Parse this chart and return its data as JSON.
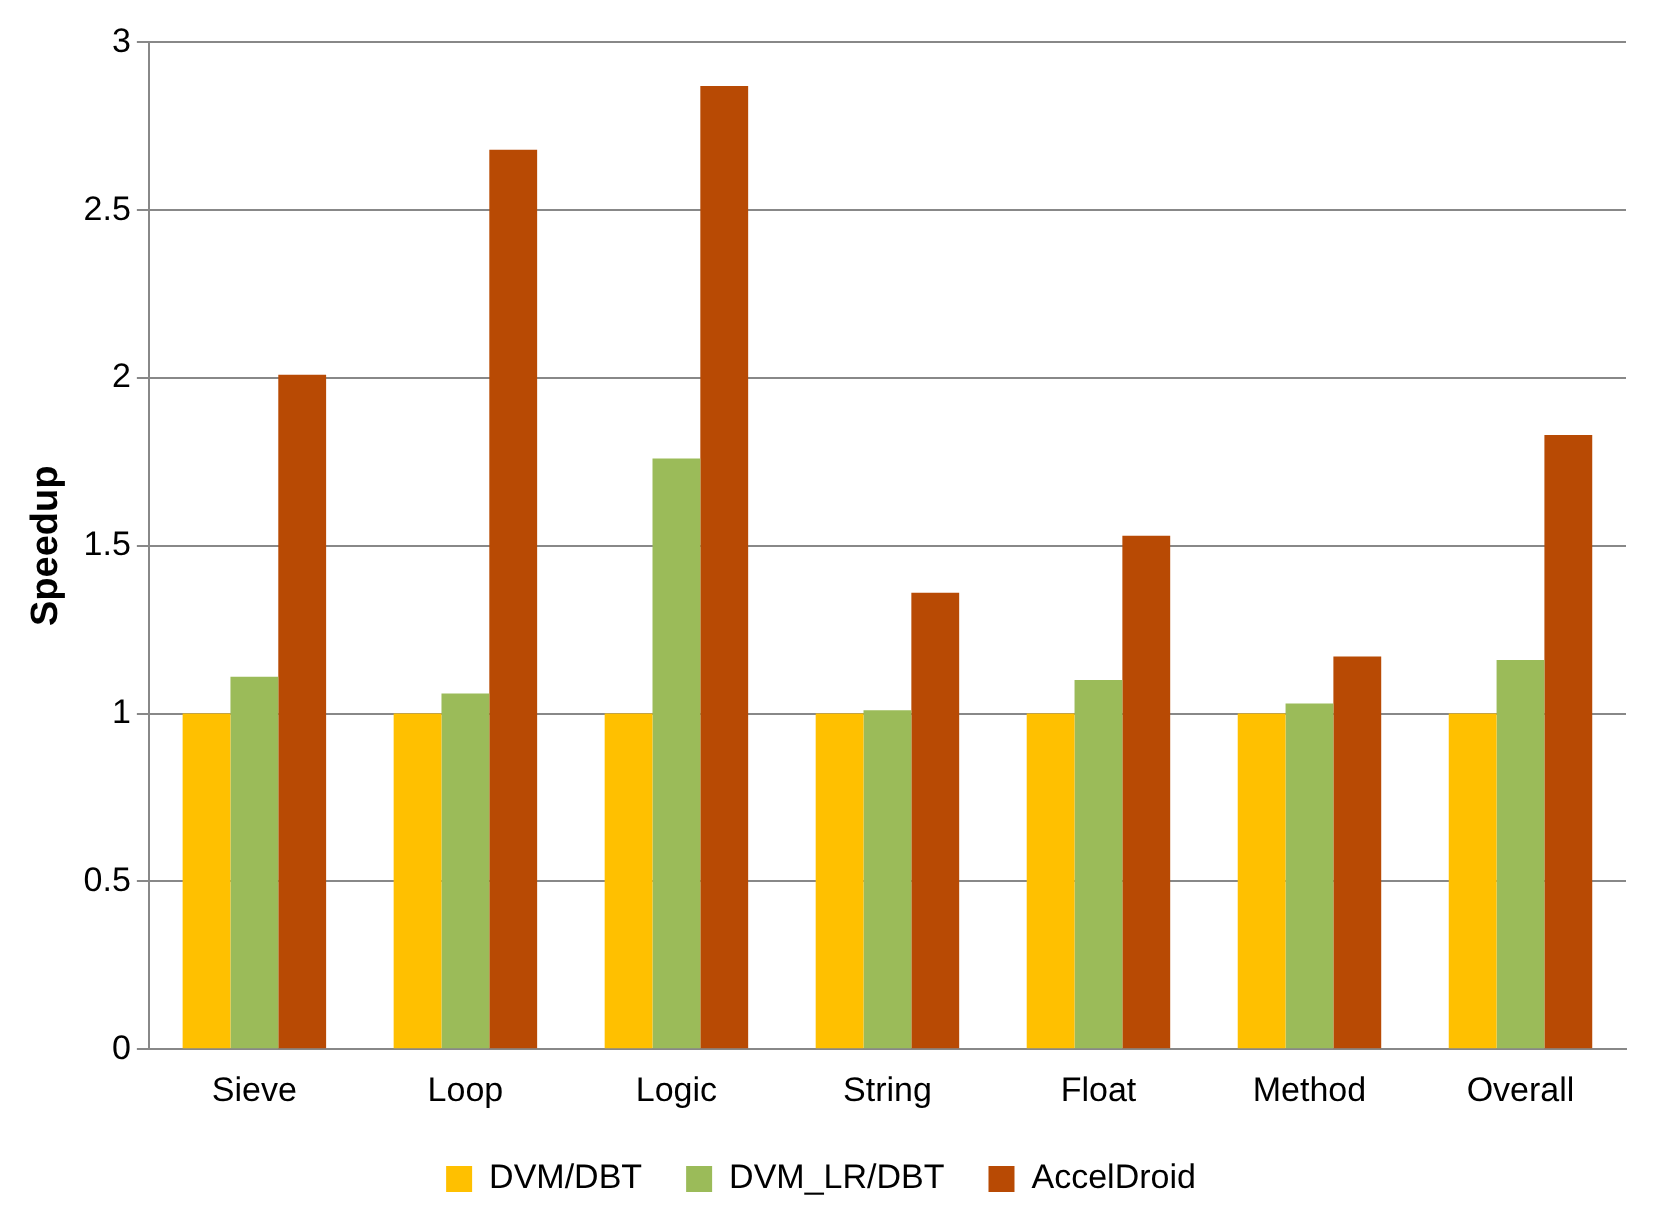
{
  "chart_data": {
    "type": "bar",
    "ylabel": "Speedup",
    "categories": [
      "Sieve",
      "Loop",
      "Logic",
      "String",
      "Float",
      "Method",
      "Overall"
    ],
    "series": [
      {
        "name": "DVM/DBT",
        "color": "#ffc000",
        "values": [
          1,
          1,
          1,
          1,
          1,
          1,
          1
        ]
      },
      {
        "name": "DVM_LR/DBT",
        "color": "#9bbb59",
        "values": [
          1.11,
          1.06,
          1.76,
          1.01,
          1.1,
          1.03,
          1.16
        ]
      },
      {
        "name": "AccelDroid",
        "color": "#b84a04",
        "values": [
          2.01,
          2.68,
          2.87,
          1.36,
          1.53,
          1.17,
          1.83
        ]
      }
    ],
    "ylim": [
      0,
      3
    ],
    "yticks": [
      0,
      0.5,
      1,
      1.5,
      2,
      2.5,
      3
    ],
    "grid": "y",
    "legend": "bottom"
  }
}
